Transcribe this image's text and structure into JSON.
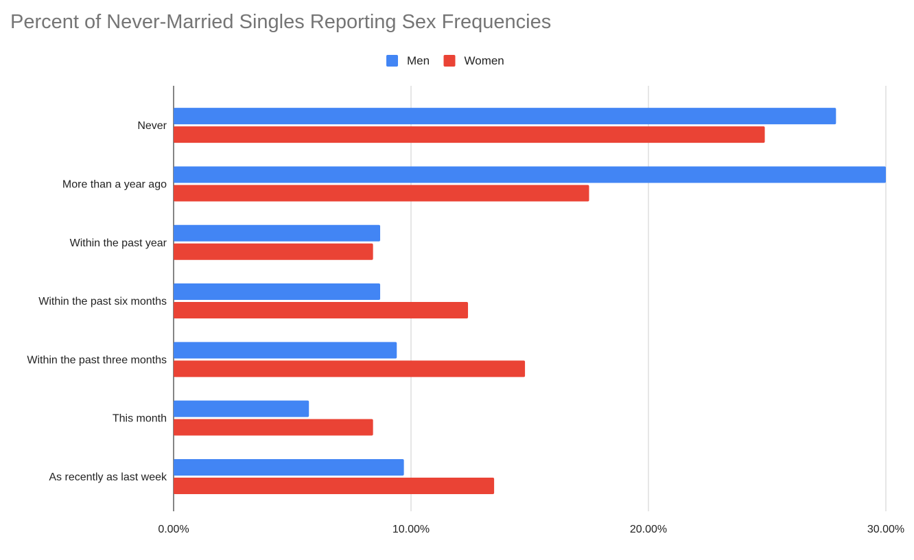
{
  "chart_data": {
    "type": "bar",
    "orientation": "horizontal",
    "title": "Percent of Never-Married Singles Reporting Sex Frequencies",
    "categories": [
      "Never",
      "More than a year ago",
      "Within the past year",
      "Within the past six months",
      "Within the past three months",
      "This month",
      "As recently as last week"
    ],
    "series": [
      {
        "name": "Men",
        "color": "#4285f4",
        "values": [
          27.9,
          30.0,
          8.7,
          8.7,
          9.4,
          5.7,
          9.7
        ]
      },
      {
        "name": "Women",
        "color": "#ea4335",
        "values": [
          24.9,
          17.5,
          8.4,
          12.4,
          14.8,
          8.4,
          13.5
        ]
      }
    ],
    "xlim": [
      0,
      30
    ],
    "x_ticks": [
      "0.00%",
      "10.00%",
      "20.00%",
      "30.00%"
    ],
    "xlabel": "",
    "ylabel": "",
    "grid": true,
    "legend_position": "top-center"
  }
}
